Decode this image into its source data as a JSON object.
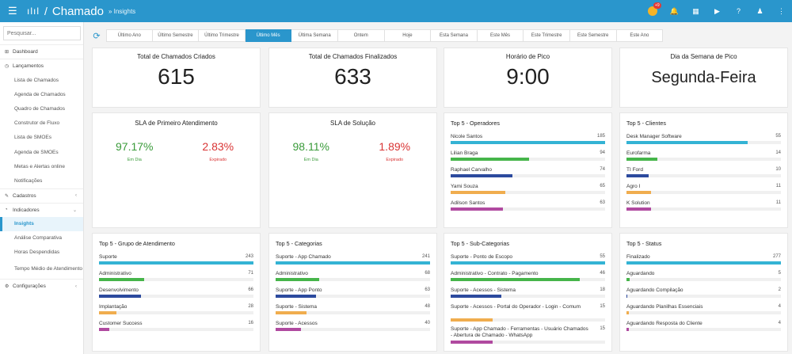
{
  "topbar": {
    "logo": "ılıl",
    "app_title": "Chamado",
    "subtitle": "» Insights",
    "badge": "+9",
    "colors": {
      "bg": "#2a96cc"
    }
  },
  "sidebar": {
    "search_placeholder": "Pesquisar...",
    "dashboard": "Dashboard",
    "lancamentos": "Lançamentos",
    "lanc_items": [
      "Lista de Chamados",
      "Agenda de Chamados",
      "Quadro de Chamados",
      "Construtor de Fluxo",
      "Lista de SMOEs",
      "Agenda de SMOEs",
      "Metas e Alertas online",
      "Notificações"
    ],
    "cadastros": "Cadastros",
    "indicadores": "Indicadores",
    "ind_items": [
      "Insights",
      "Análise Comparativa",
      "Horas Despendidas",
      "Tempo Médio de Atendimento"
    ],
    "configuracoes": "Configurações"
  },
  "filters": [
    "Último Ano",
    "Último Semestre",
    "Último Trimestre",
    "Último Mês",
    "Última Semana",
    "Ontem",
    "Hoje",
    "Esta Semana",
    "Este Mês",
    "Este Trimestre",
    "Este Semestre",
    "Este Ano"
  ],
  "kpis": [
    {
      "title": "Total de Chamados Criados",
      "value": "615"
    },
    {
      "title": "Total de Chamados Finalizados",
      "value": "633"
    },
    {
      "title": "Horário de Pico",
      "value": "9:00"
    },
    {
      "title": "Dia da Semana de Pico",
      "value": "Segunda-Feira"
    }
  ],
  "sla": [
    {
      "title": "SLA de Primeiro Atendimento",
      "ok": "97.17%",
      "ok_label": "Em Dia",
      "late": "2.83%",
      "late_label": "Expirado"
    },
    {
      "title": "SLA de Solução",
      "ok": "98.11%",
      "ok_label": "Em Dia",
      "late": "1.89%",
      "late_label": "Expirado"
    }
  ],
  "bar_colors": [
    "#34b3d4",
    "#46b54a",
    "#2c4a9e",
    "#f0ad4e",
    "#b04aa0"
  ],
  "top5": {
    "operadores": {
      "title": "Top 5 - Operadores",
      "max": 185,
      "rows": [
        {
          "name": "Nicole Santos",
          "value": 185
        },
        {
          "name": "Lilian Braga",
          "value": 94
        },
        {
          "name": "Raphael Carvalho",
          "value": 74
        },
        {
          "name": "Yami Souza",
          "value": 65
        },
        {
          "name": "Adilson Santos",
          "value": 63
        }
      ]
    },
    "clientes": {
      "title": "Top 5 - Clientes",
      "max": 70,
      "rows": [
        {
          "name": "Desk Manager Software",
          "value": 55
        },
        {
          "name": "Eurofarma",
          "value": 14
        },
        {
          "name": "TI Ford",
          "value": 10
        },
        {
          "name": "Agro I",
          "value": 11
        },
        {
          "name": "K Solution",
          "value": 11
        }
      ]
    },
    "grupos": {
      "title": "Top 5 - Grupo de Atendimento",
      "max": 243,
      "rows": [
        {
          "name": "Suporte",
          "value": 243
        },
        {
          "name": "Administrativo",
          "value": 71
        },
        {
          "name": "Desenvolvimento",
          "value": 66
        },
        {
          "name": "Implantação",
          "value": 28
        },
        {
          "name": "Customer Success",
          "value": 16
        }
      ]
    },
    "categorias": {
      "title": "Top 5 - Categorias",
      "max": 241,
      "rows": [
        {
          "name": "Suporte - App Chamado",
          "value": 241
        },
        {
          "name": "Administrativo",
          "value": 68
        },
        {
          "name": "Suporte - App Ponto",
          "value": 63
        },
        {
          "name": "Suporte - Sistema",
          "value": 48
        },
        {
          "name": "Suporte - Acessos",
          "value": 40
        }
      ]
    },
    "subcategorias": {
      "title": "Top 5 - Sub-Categorias",
      "max": 55,
      "rows": [
        {
          "name": "Suporte - Ponto de Escopo",
          "value": 55
        },
        {
          "name": "Administrativo - Contrato - Pagamento",
          "value": 46
        },
        {
          "name": "Suporte - Acessos - Sistema",
          "value": 18
        },
        {
          "name": "Suporte - Acessos - Portal do Operador - Login - Comum",
          "value": 15
        },
        {
          "name": "Suporte - App Chamado - Ferramentas - Usuário Chamados - Abertura de Chamado - WhatsApp",
          "value": 15
        }
      ]
    },
    "status": {
      "title": "Top 5 - Status",
      "max": 277,
      "rows": [
        {
          "name": "Finalizado",
          "value": 277
        },
        {
          "name": "Aguardando",
          "value": 5
        },
        {
          "name": "Aguardando Compilação",
          "value": 2
        },
        {
          "name": "Aguardando Planilhas Essenciais",
          "value": 4
        },
        {
          "name": "Aguardando Resposta do Cliente",
          "value": 4
        }
      ]
    }
  }
}
